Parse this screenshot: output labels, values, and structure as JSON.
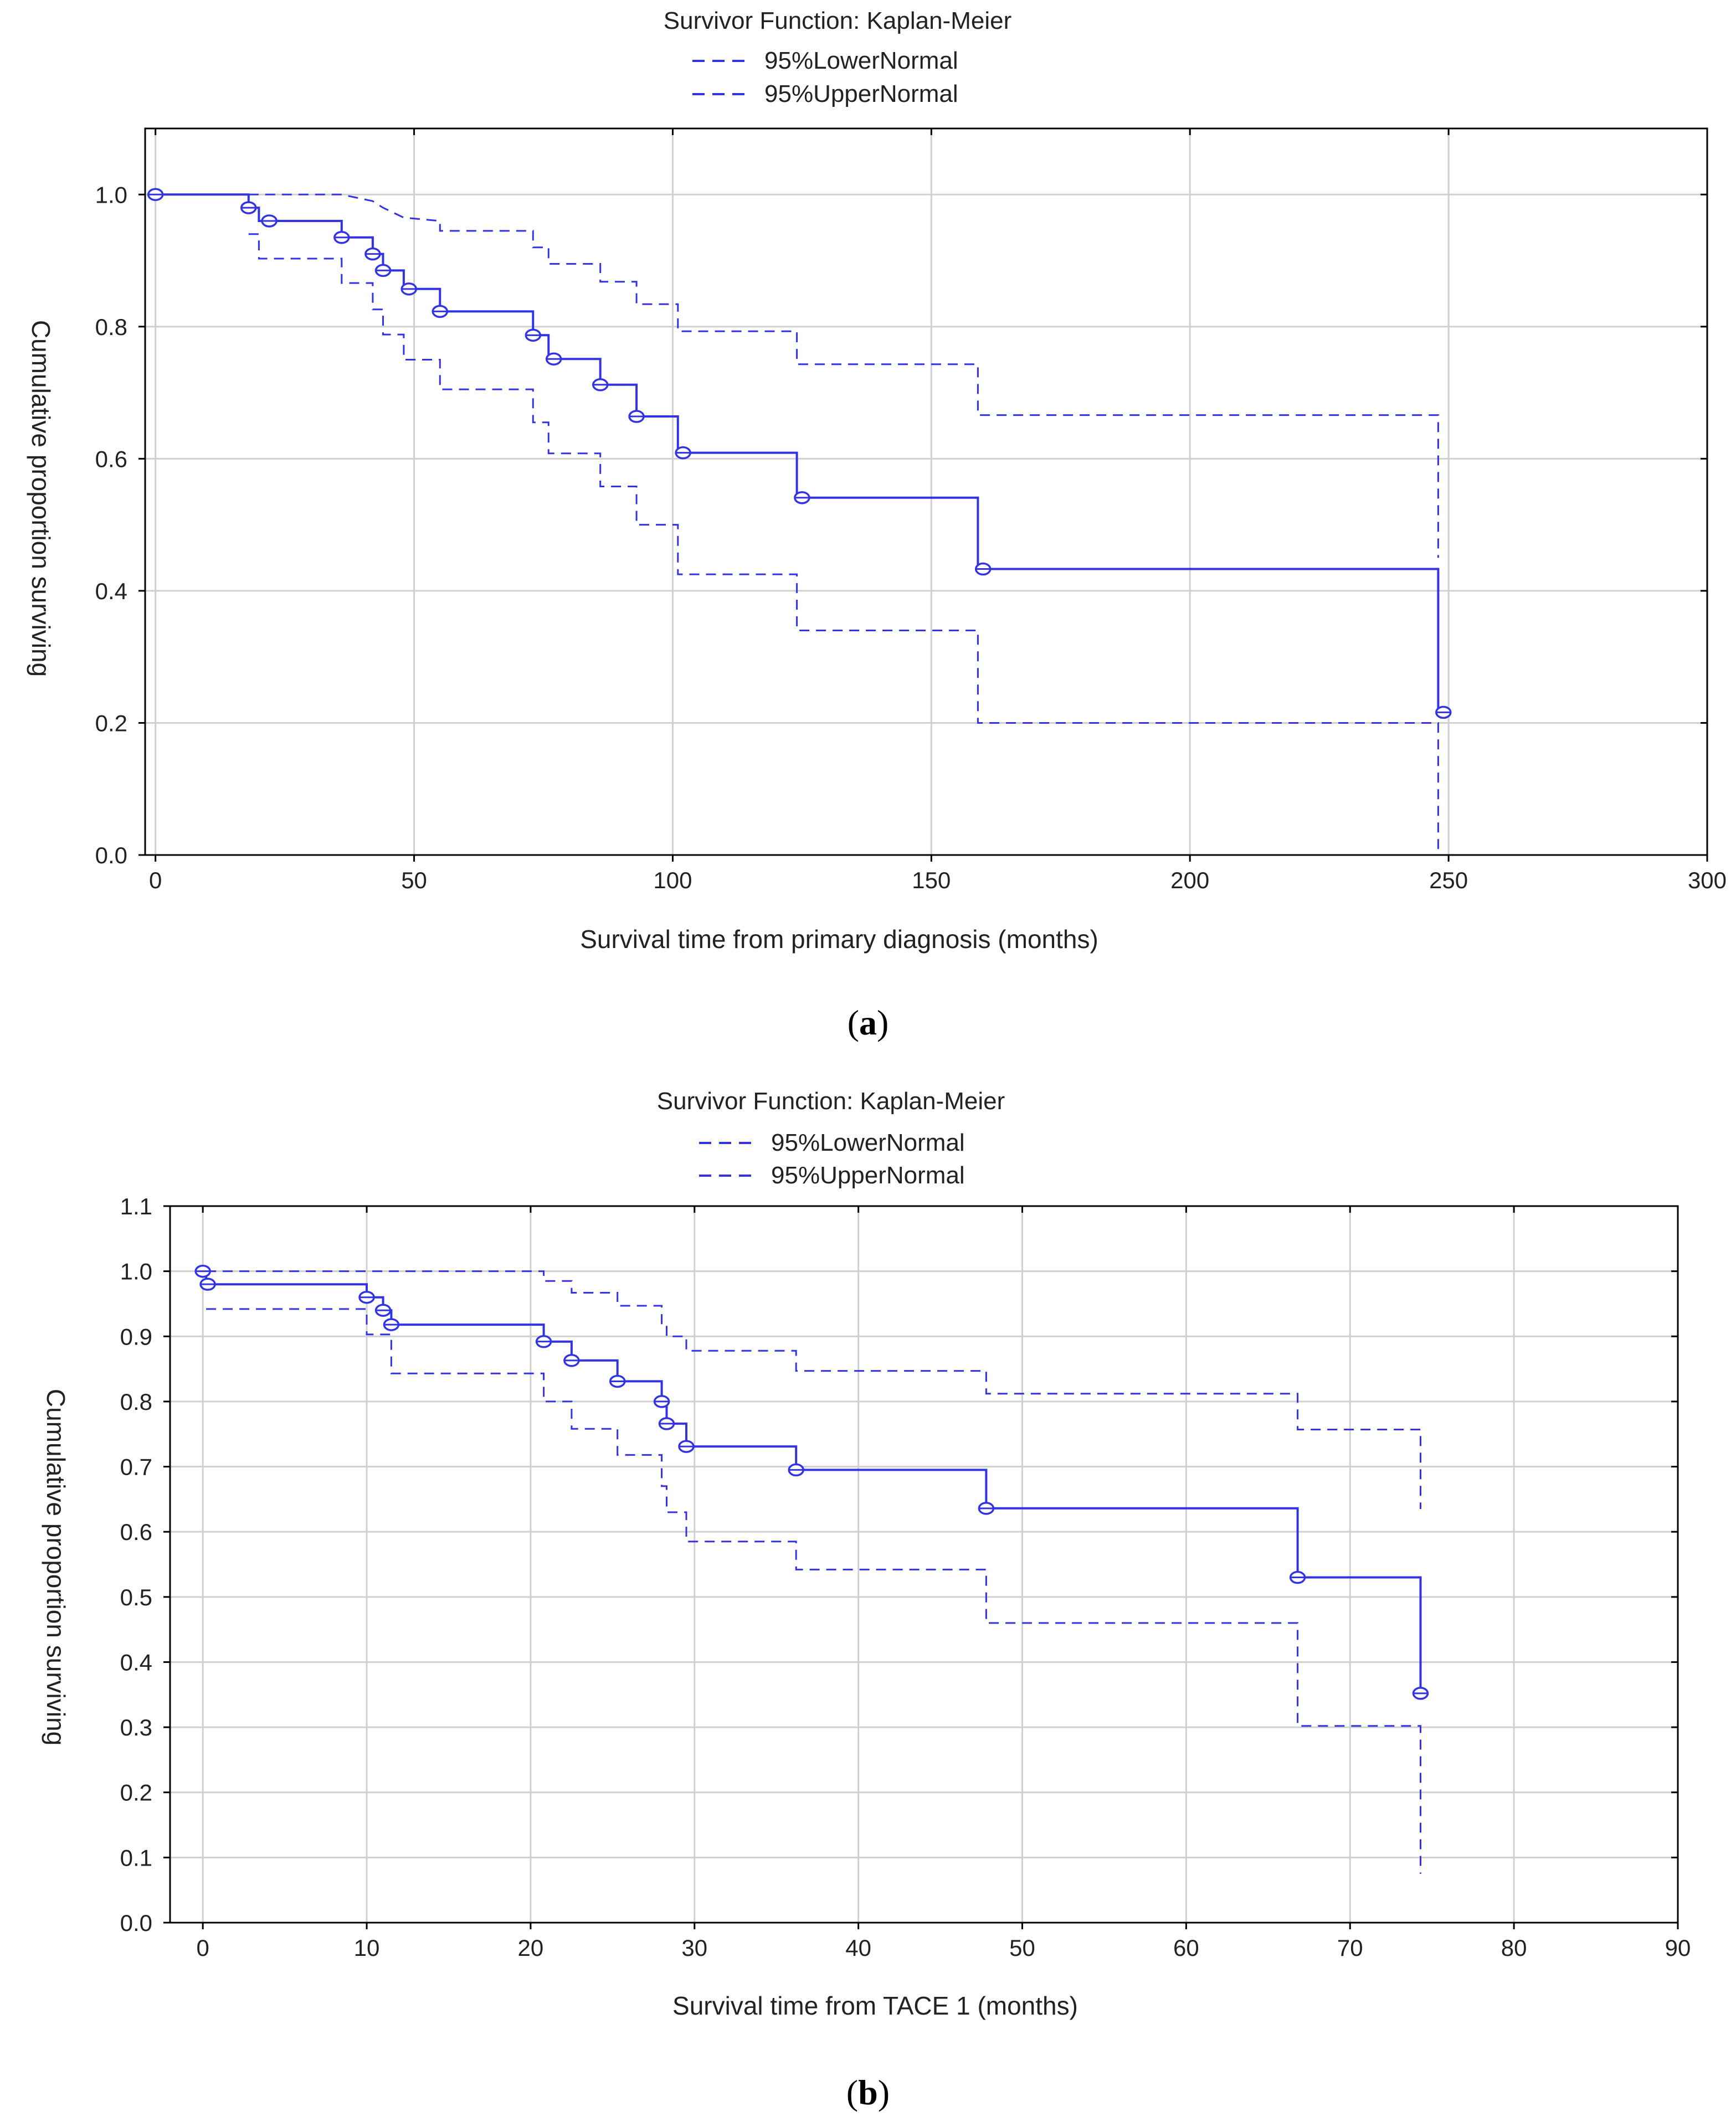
{
  "colors": {
    "series": "#3333e6",
    "grid": "#d0d0d0",
    "axis": "#000000",
    "text": "#222222"
  },
  "chart_data": [
    {
      "type": "line",
      "panel_label": "a",
      "title": "Survivor Function: Kaplan-Meier",
      "legend": [
        {
          "name": "95%LowerNormal",
          "style": "dashed"
        },
        {
          "name": "95%UpperNormal",
          "style": "dashed"
        }
      ],
      "legend_placement": "top-center",
      "xlabel": "Survival time from primary diagnosis (months)",
      "ylabel": "Cumulative proportion surviving",
      "xlim": [
        -2,
        300
      ],
      "ylim": [
        0,
        1.1
      ],
      "xticks": [
        0,
        50,
        100,
        150,
        200,
        250,
        300
      ],
      "yticks": [
        0.0,
        0.2,
        0.4,
        0.6,
        0.8,
        1.0
      ],
      "ytick_decimals": 1,
      "grid": true,
      "series": [
        {
          "name": "Survival",
          "style": "solid",
          "points": [
            [
              0,
              1.0
            ],
            [
              18,
              1.0
            ],
            [
              18,
              0.98
            ],
            [
              20,
              0.98
            ],
            [
              20,
              0.96
            ],
            [
              36,
              0.96
            ],
            [
              36,
              0.935
            ],
            [
              42,
              0.935
            ],
            [
              42,
              0.91
            ],
            [
              44,
              0.91
            ],
            [
              44,
              0.885
            ],
            [
              48,
              0.885
            ],
            [
              48,
              0.857
            ],
            [
              55,
              0.857
            ],
            [
              55,
              0.823
            ],
            [
              73,
              0.823
            ],
            [
              73,
              0.787
            ],
            [
              76,
              0.787
            ],
            [
              76,
              0.751
            ],
            [
              86,
              0.751
            ],
            [
              86,
              0.712
            ],
            [
              93,
              0.712
            ],
            [
              93,
              0.664
            ],
            [
              101,
              0.664
            ],
            [
              101,
              0.609
            ],
            [
              124,
              0.609
            ],
            [
              124,
              0.541
            ],
            [
              159,
              0.541
            ],
            [
              159,
              0.433
            ],
            [
              248,
              0.433
            ],
            [
              248,
              0.216
            ]
          ]
        },
        {
          "name": "95%LowerNormal",
          "style": "dashed",
          "points": [
            [
              18,
              0.94
            ],
            [
              20,
              0.94
            ],
            [
              20,
              0.903
            ],
            [
              36,
              0.903
            ],
            [
              36,
              0.866
            ],
            [
              42,
              0.866
            ],
            [
              42,
              0.826
            ],
            [
              44,
              0.826
            ],
            [
              44,
              0.788
            ],
            [
              48,
              0.788
            ],
            [
              48,
              0.75
            ],
            [
              55,
              0.75
            ],
            [
              55,
              0.705
            ],
            [
              73,
              0.705
            ],
            [
              73,
              0.655
            ],
            [
              76,
              0.655
            ],
            [
              76,
              0.608
            ],
            [
              86,
              0.608
            ],
            [
              86,
              0.558
            ],
            [
              93,
              0.558
            ],
            [
              93,
              0.5
            ],
            [
              101,
              0.5
            ],
            [
              101,
              0.425
            ],
            [
              124,
              0.425
            ],
            [
              124,
              0.34
            ],
            [
              159,
              0.34
            ],
            [
              159,
              0.2
            ],
            [
              248,
              0.2
            ],
            [
              248,
              0.0
            ]
          ]
        },
        {
          "name": "95%UpperNormal",
          "style": "dashed",
          "points": [
            [
              18,
              1.0
            ],
            [
              36,
              1.0
            ],
            [
              42,
              0.99
            ],
            [
              44,
              0.98
            ],
            [
              48,
              0.965
            ],
            [
              55,
              0.96
            ],
            [
              55,
              0.945
            ],
            [
              73,
              0.945
            ],
            [
              73,
              0.92
            ],
            [
              76,
              0.92
            ],
            [
              76,
              0.895
            ],
            [
              86,
              0.895
            ],
            [
              86,
              0.868
            ],
            [
              93,
              0.868
            ],
            [
              93,
              0.834
            ],
            [
              101,
              0.834
            ],
            [
              101,
              0.793
            ],
            [
              124,
              0.793
            ],
            [
              124,
              0.743
            ],
            [
              159,
              0.743
            ],
            [
              159,
              0.666
            ],
            [
              248,
              0.666
            ],
            [
              248,
              0.45
            ]
          ]
        }
      ],
      "censored": [
        [
          0,
          1.0
        ],
        [
          18,
          0.98
        ],
        [
          22,
          0.96
        ],
        [
          36,
          0.935
        ],
        [
          42,
          0.91
        ],
        [
          44,
          0.885
        ],
        [
          49,
          0.857
        ],
        [
          55,
          0.823
        ],
        [
          73,
          0.787
        ],
        [
          77,
          0.751
        ],
        [
          86,
          0.712
        ],
        [
          93,
          0.664
        ],
        [
          102,
          0.609
        ],
        [
          125,
          0.541
        ],
        [
          160,
          0.433
        ],
        [
          249,
          0.216
        ]
      ]
    },
    {
      "type": "line",
      "panel_label": "b",
      "title": "Survivor Function: Kaplan-Meier",
      "legend": [
        {
          "name": "95%LowerNormal",
          "style": "dashed"
        },
        {
          "name": "95%UpperNormal",
          "style": "dashed"
        }
      ],
      "legend_placement": "top-center",
      "xlabel": "Survival time from TACE 1 (months)",
      "ylabel": "Cumulative proportion surviving",
      "xlim": [
        -2,
        90
      ],
      "ylim": [
        0,
        1.1
      ],
      "xticks": [
        0,
        10,
        20,
        30,
        40,
        50,
        60,
        70,
        80,
        90
      ],
      "yticks": [
        0.0,
        0.1,
        0.2,
        0.3,
        0.4,
        0.5,
        0.6,
        0.7,
        0.8,
        0.9,
        1.0,
        1.1
      ],
      "ytick_decimals": 1,
      "grid": true,
      "series": [
        {
          "name": "Survival",
          "style": "solid",
          "points": [
            [
              0,
              1.0
            ],
            [
              0.2,
              1.0
            ],
            [
              0.2,
              0.98
            ],
            [
              10,
              0.98
            ],
            [
              10,
              0.96
            ],
            [
              11,
              0.96
            ],
            [
              11,
              0.94
            ],
            [
              11.5,
              0.94
            ],
            [
              11.5,
              0.918
            ],
            [
              20.8,
              0.918
            ],
            [
              20.8,
              0.892
            ],
            [
              22.5,
              0.892
            ],
            [
              22.5,
              0.863
            ],
            [
              25.3,
              0.863
            ],
            [
              25.3,
              0.831
            ],
            [
              28,
              0.831
            ],
            [
              28,
              0.8
            ],
            [
              28.3,
              0.8
            ],
            [
              28.3,
              0.766
            ],
            [
              29.5,
              0.766
            ],
            [
              29.5,
              0.731
            ],
            [
              36.2,
              0.731
            ],
            [
              36.2,
              0.695
            ],
            [
              47.8,
              0.695
            ],
            [
              47.8,
              0.636
            ],
            [
              66.8,
              0.636
            ],
            [
              66.8,
              0.53
            ],
            [
              74.3,
              0.53
            ],
            [
              74.3,
              0.352
            ]
          ]
        },
        {
          "name": "95%LowerNormal",
          "style": "dashed",
          "points": [
            [
              0.2,
              0.942
            ],
            [
              10,
              0.942
            ],
            [
              10,
              0.903
            ],
            [
              11.5,
              0.903
            ],
            [
              11.5,
              0.843
            ],
            [
              20.8,
              0.843
            ],
            [
              20.8,
              0.8
            ],
            [
              22.5,
              0.8
            ],
            [
              22.5,
              0.758
            ],
            [
              25.3,
              0.758
            ],
            [
              25.3,
              0.718
            ],
            [
              28,
              0.718
            ],
            [
              28,
              0.67
            ],
            [
              28.3,
              0.67
            ],
            [
              28.3,
              0.63
            ],
            [
              29.5,
              0.63
            ],
            [
              29.5,
              0.585
            ],
            [
              36.2,
              0.585
            ],
            [
              36.2,
              0.542
            ],
            [
              47.8,
              0.542
            ],
            [
              47.8,
              0.46
            ],
            [
              66.8,
              0.46
            ],
            [
              66.8,
              0.302
            ],
            [
              74.3,
              0.302
            ],
            [
              74.3,
              0.075
            ]
          ]
        },
        {
          "name": "95%UpperNormal",
          "style": "dashed",
          "points": [
            [
              0.2,
              1.0
            ],
            [
              20.8,
              1.0
            ],
            [
              20.8,
              0.985
            ],
            [
              22.5,
              0.985
            ],
            [
              22.5,
              0.967
            ],
            [
              25.3,
              0.967
            ],
            [
              25.3,
              0.947
            ],
            [
              28,
              0.947
            ],
            [
              28,
              0.92
            ],
            [
              28.3,
              0.92
            ],
            [
              28.3,
              0.9
            ],
            [
              29.5,
              0.9
            ],
            [
              29.5,
              0.878
            ],
            [
              36.2,
              0.878
            ],
            [
              36.2,
              0.847
            ],
            [
              47.8,
              0.847
            ],
            [
              47.8,
              0.812
            ],
            [
              66.8,
              0.812
            ],
            [
              66.8,
              0.757
            ],
            [
              74.3,
              0.757
            ],
            [
              74.3,
              0.635
            ]
          ]
        }
      ],
      "censored": [
        [
          0,
          1.0
        ],
        [
          0.3,
          0.98
        ],
        [
          10,
          0.96
        ],
        [
          11,
          0.94
        ],
        [
          11.5,
          0.918
        ],
        [
          20.8,
          0.892
        ],
        [
          22.5,
          0.863
        ],
        [
          25.3,
          0.831
        ],
        [
          28,
          0.8
        ],
        [
          28.3,
          0.766
        ],
        [
          29.5,
          0.731
        ],
        [
          36.2,
          0.695
        ],
        [
          47.8,
          0.636
        ],
        [
          66.8,
          0.53
        ],
        [
          74.3,
          0.352
        ]
      ]
    }
  ]
}
